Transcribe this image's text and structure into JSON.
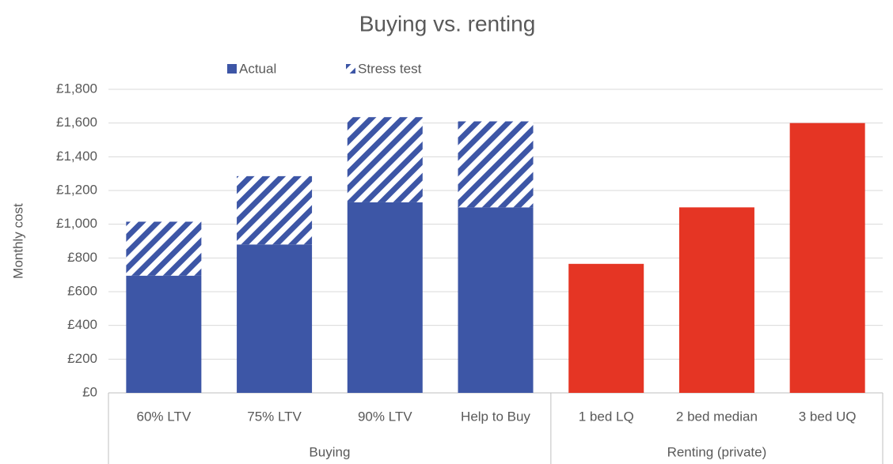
{
  "chart_data": {
    "type": "stacked_bar",
    "title": "Buying vs. renting",
    "ylabel": "Monthly cost",
    "categories": [
      "60% LTV",
      "75% LTV",
      "90% LTV",
      "Help to Buy",
      "1 bed LQ",
      "2 bed median",
      "3 bed UQ"
    ],
    "groups": [
      {
        "label": "Buying",
        "size": 4
      },
      {
        "label": "Renting (private)",
        "size": 3
      }
    ],
    "series": [
      {
        "name": "Actual",
        "color": "#3d56a6",
        "pattern": "solid",
        "point_colors": [
          "#3d56a6",
          "#3d56a6",
          "#3d56a6",
          "#3d56a6",
          "#e53524",
          "#e53524",
          "#e53524"
        ],
        "values": [
          695,
          880,
          1130,
          1100,
          765,
          1100,
          1600
        ]
      },
      {
        "name": "Stress test",
        "color": "#3d56a6",
        "pattern": "hatch",
        "values": [
          320,
          405,
          505,
          510,
          null,
          null,
          null
        ]
      }
    ],
    "ylim": [
      0,
      1800
    ],
    "yticks": [
      {
        "value": 0,
        "label": "£0"
      },
      {
        "value": 200,
        "label": "£200"
      },
      {
        "value": 400,
        "label": "£400"
      },
      {
        "value": 600,
        "label": "£600"
      },
      {
        "value": 800,
        "label": "£800"
      },
      {
        "value": 1000,
        "label": "£1,000"
      },
      {
        "value": 1200,
        "label": "£1,200"
      },
      {
        "value": 1400,
        "label": "£1,400"
      },
      {
        "value": 1600,
        "label": "£1,600"
      },
      {
        "value": 1800,
        "label": "£1,800"
      }
    ],
    "grid": true,
    "legend": "top"
  }
}
